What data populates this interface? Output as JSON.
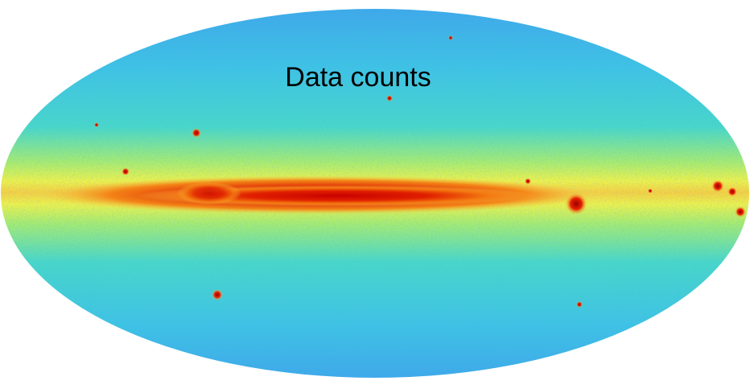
{
  "title": "Data counts"
}
